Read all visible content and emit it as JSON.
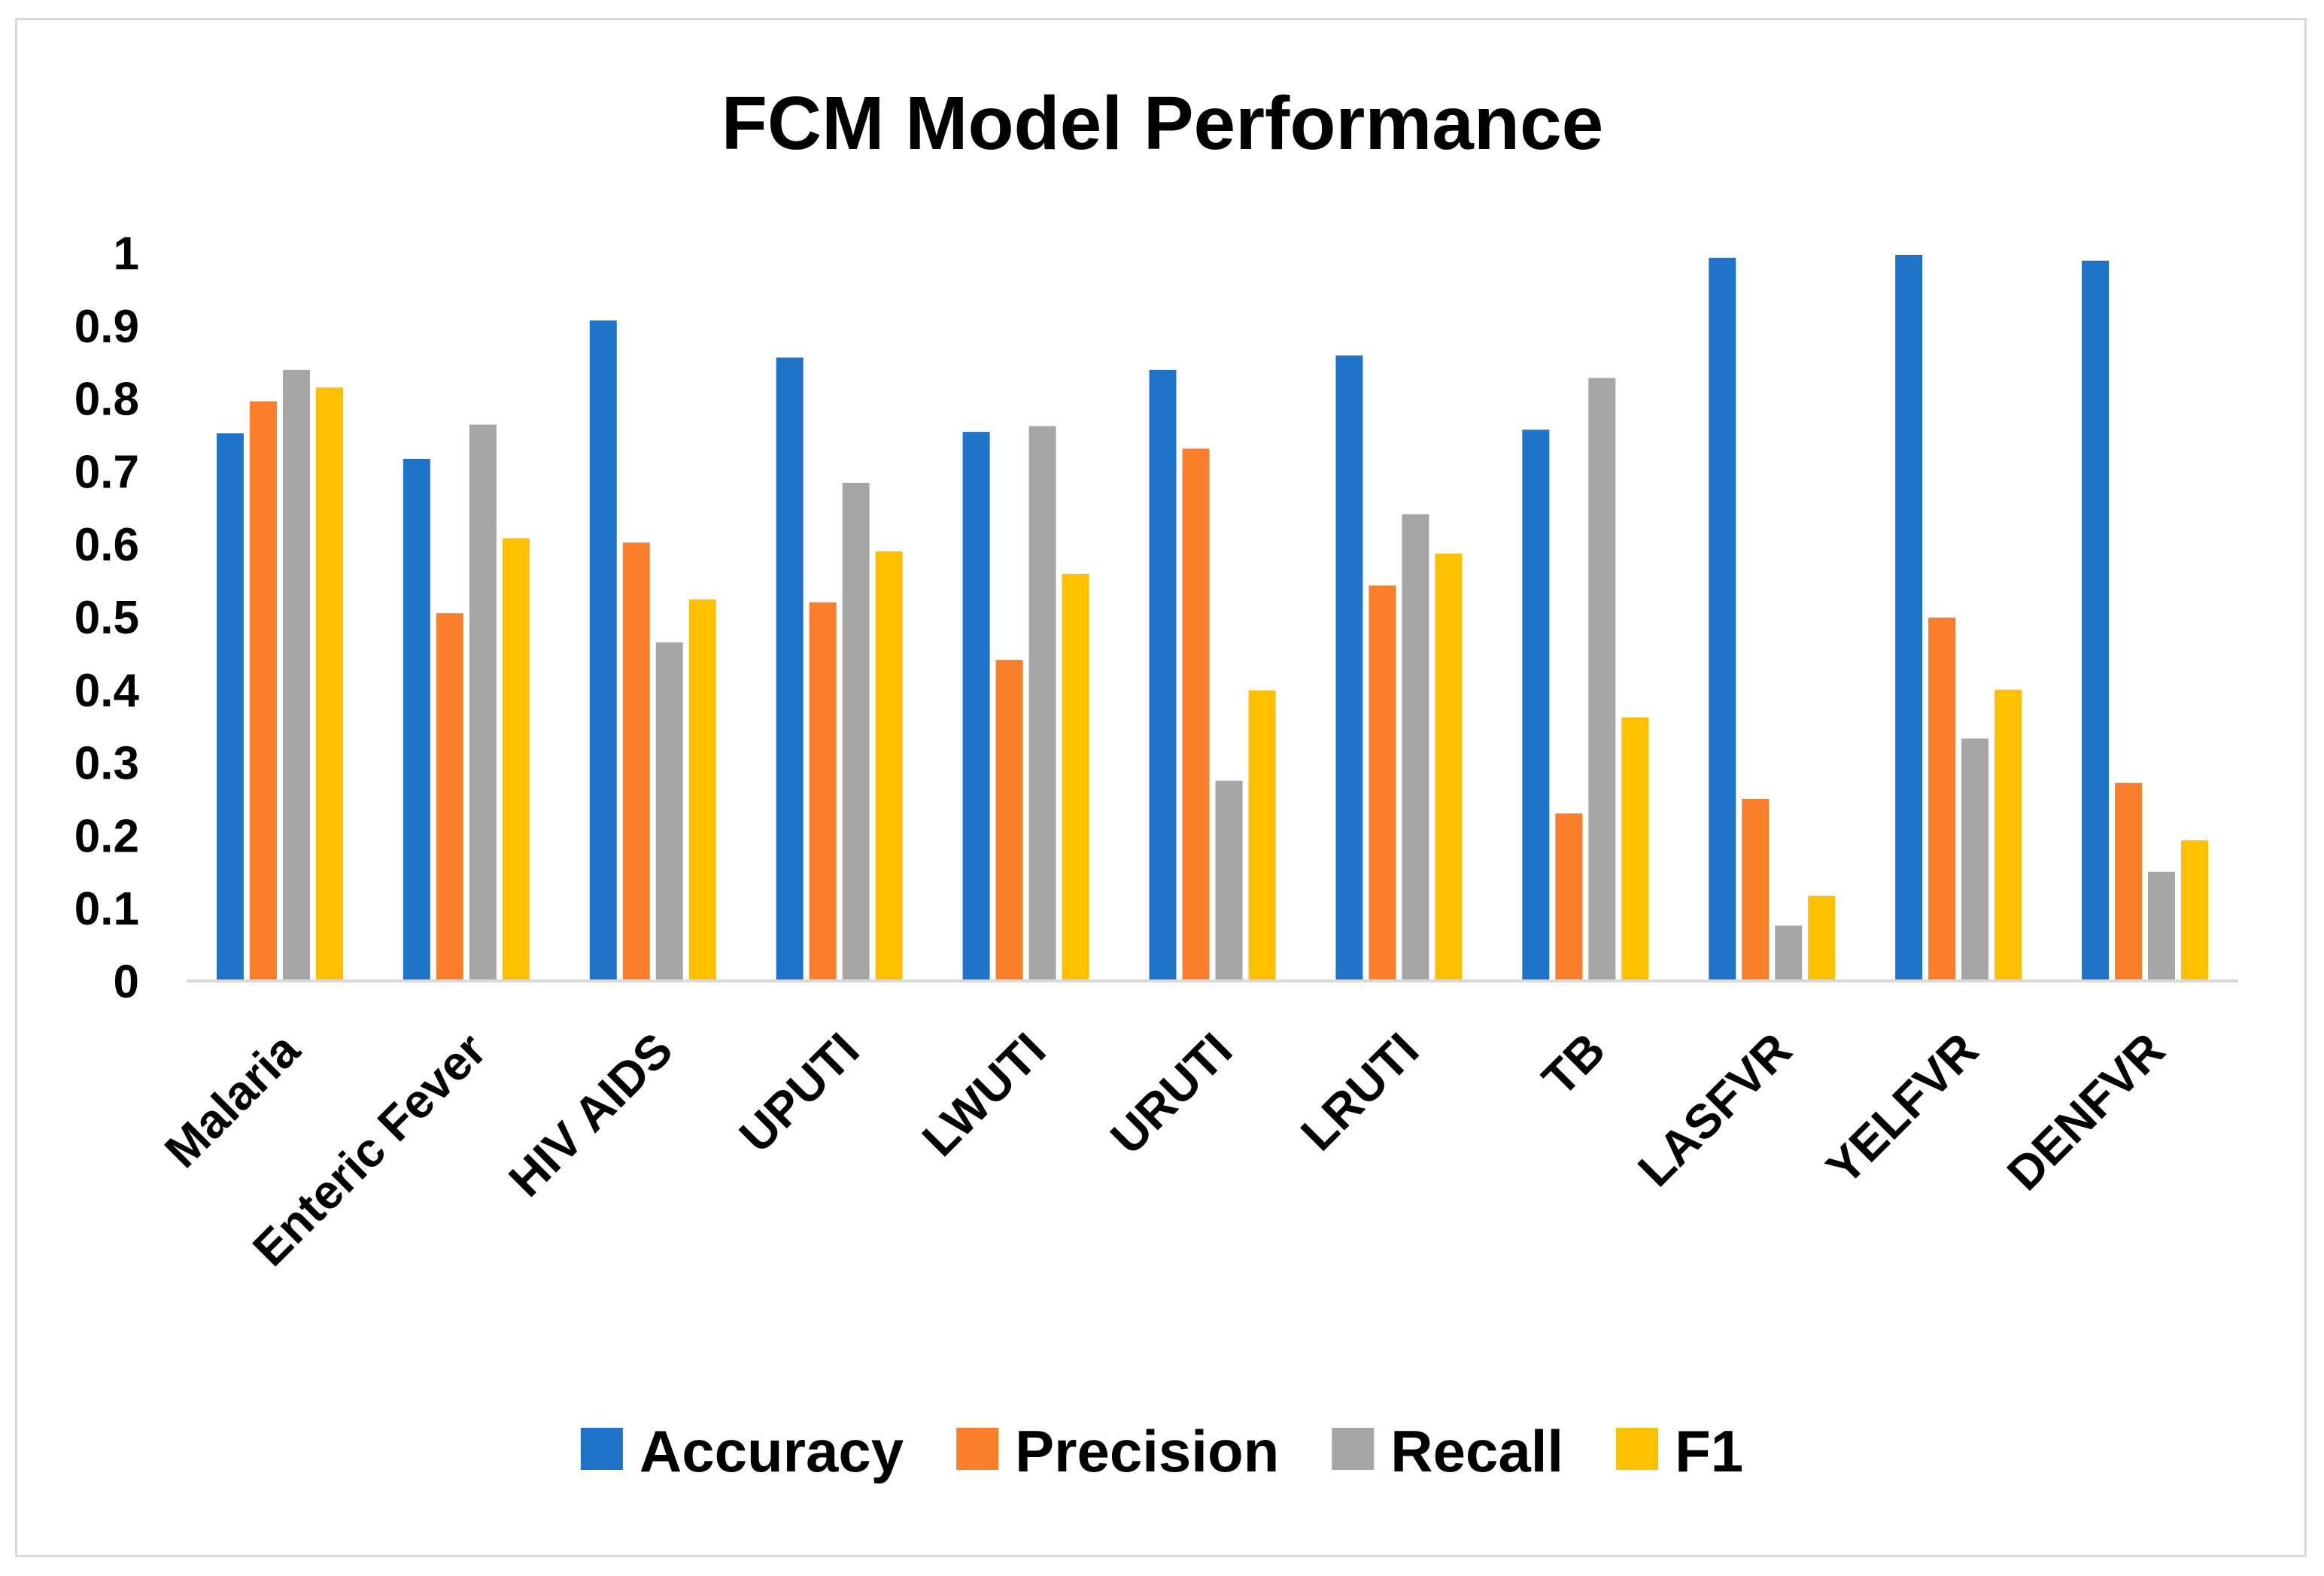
{
  "chart_data": {
    "type": "bar",
    "title": "FCM Model Performance",
    "xlabel": "",
    "ylabel": "",
    "ylim": [
      0,
      1
    ],
    "yticks": [
      "0",
      "0.1",
      "0.2",
      "0.3",
      "0.4",
      "0.5",
      "0.6",
      "0.7",
      "0.8",
      "0.9",
      "1"
    ],
    "grid": false,
    "legend_position": "bottom",
    "categories": [
      "Malaria",
      "Enteric Fever",
      "HIV AIDS",
      "UPUTI",
      "LWUTI",
      "URUTI",
      "LRUTI",
      "TB",
      "LASFVR",
      "YELFVR",
      "DENFVR"
    ],
    "series": [
      {
        "name": "Accuracy",
        "color": "#1f74c9",
        "values": [
          0.752,
          0.717,
          0.907,
          0.856,
          0.754,
          0.839,
          0.859,
          0.757,
          0.993,
          0.997,
          0.989
        ]
      },
      {
        "name": "Precision",
        "color": "#fb7f2b",
        "values": [
          0.796,
          0.505,
          0.602,
          0.52,
          0.441,
          0.731,
          0.543,
          0.23,
          0.25,
          0.499,
          0.272
        ]
      },
      {
        "name": "Recall",
        "color": "#a6a6a6",
        "values": [
          0.839,
          0.764,
          0.465,
          0.684,
          0.762,
          0.275,
          0.641,
          0.828,
          0.076,
          0.333,
          0.15
        ]
      },
      {
        "name": "F1",
        "color": "#ffc000",
        "values": [
          0.815,
          0.608,
          0.524,
          0.59,
          0.559,
          0.399,
          0.587,
          0.362,
          0.117,
          0.4,
          0.193
        ]
      }
    ]
  }
}
